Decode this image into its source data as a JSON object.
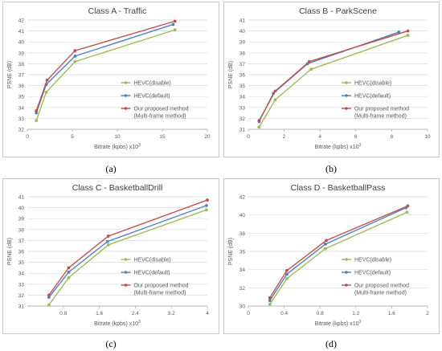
{
  "legend_labels": {
    "disable": "HEVC(disable)",
    "default": "HEVC(default)",
    "proposed_line1": "Our proposed method",
    "proposed_line2": "(Multi-frame method)"
  },
  "colors": {
    "disable": "#9bbb59",
    "default": "#4f81bd",
    "proposed": "#c0504d",
    "grid": "#d9d9d9",
    "axis": "#a6a6a6",
    "text": "#595959"
  },
  "chart_data": [
    {
      "type": "line",
      "sublabel": "(a)",
      "title": "Class A - Traffic",
      "xlabel": "Bitrate (kpbs) x10",
      "xlabel_sup": "3",
      "ylabel": "PSNE (dB)",
      "xlim": [
        0,
        20
      ],
      "ylim": [
        32,
        42
      ],
      "xticks": [
        0,
        5,
        10,
        15,
        20
      ],
      "xtick_labels": [
        "0",
        "5",
        "10",
        "15",
        "20"
      ],
      "yticks": [
        32,
        33,
        34,
        35,
        36,
        37,
        38,
        39,
        40,
        41,
        42
      ],
      "grid": "horizontal",
      "legend_position": "bottom-right",
      "series": [
        {
          "key": "disable",
          "name": "HEVC(disable)",
          "x": [
            1.0,
            2.1,
            5.3,
            16.4
          ],
          "y": [
            32.8,
            35.4,
            38.2,
            41.1
          ]
        },
        {
          "key": "default",
          "name": "HEVC(default)",
          "x": [
            1.0,
            2.1,
            5.3,
            16.2
          ],
          "y": [
            33.5,
            36.1,
            38.7,
            41.6
          ]
        },
        {
          "key": "proposed",
          "name": "Our proposed method (Multi-frame method)",
          "x": [
            1.0,
            2.2,
            5.3,
            16.4
          ],
          "y": [
            33.7,
            36.5,
            39.2,
            41.9
          ]
        }
      ]
    },
    {
      "type": "line",
      "sublabel": "(b)",
      "title": "Class B - ParkScene",
      "xlabel": "Bitrate (kpbs) x10",
      "xlabel_sup": "3",
      "ylabel": "PSNE (dB)",
      "xlim": [
        0,
        10
      ],
      "ylim": [
        31,
        41
      ],
      "xticks": [
        0,
        2,
        4,
        6,
        8,
        10
      ],
      "xtick_labels": [
        "0",
        "2",
        "4",
        "6",
        "8",
        "10"
      ],
      "yticks": [
        31,
        32,
        33,
        34,
        35,
        36,
        37,
        38,
        39,
        40,
        41
      ],
      "grid": "horizontal",
      "legend_position": "bottom-right",
      "series": [
        {
          "key": "disable",
          "name": "HEVC(disable)",
          "x": [
            0.6,
            1.5,
            3.5,
            8.9
          ],
          "y": [
            31.2,
            33.7,
            36.5,
            39.6
          ]
        },
        {
          "key": "default",
          "name": "HEVC(default)",
          "x": [
            0.6,
            1.4,
            3.3,
            8.4
          ],
          "y": [
            31.7,
            34.3,
            37.0,
            39.9
          ]
        },
        {
          "key": "proposed",
          "name": "Our proposed method (Multi-frame method)",
          "x": [
            0.6,
            1.5,
            3.4,
            8.9
          ],
          "y": [
            31.8,
            34.5,
            37.2,
            40.0
          ]
        }
      ]
    },
    {
      "type": "line",
      "sublabel": "(c)",
      "title": "Class C - BasketballDrill",
      "xlabel": "Bitrate (kpbs) x10",
      "xlabel_sup": "3",
      "ylabel": "PSNE (dB)",
      "xlim": [
        0,
        4
      ],
      "ylim": [
        31,
        41
      ],
      "xticks": [
        0.8,
        1.6,
        2.4,
        3.2,
        4
      ],
      "xtick_labels": [
        "0.8",
        "1.6",
        "2.4",
        "3.2",
        "4"
      ],
      "yticks": [
        31,
        32,
        33,
        34,
        35,
        36,
        37,
        38,
        39,
        40,
        41
      ],
      "grid": "horizontal",
      "legend_position": "bottom-right",
      "series": [
        {
          "key": "disable",
          "name": "HEVC(disable)",
          "x": [
            0.48,
            0.92,
            1.8,
            3.98
          ],
          "y": [
            31.1,
            33.6,
            36.6,
            39.8
          ]
        },
        {
          "key": "default",
          "name": "HEVC(default)",
          "x": [
            0.48,
            0.92,
            1.78,
            3.98
          ],
          "y": [
            31.8,
            34.1,
            36.9,
            40.2
          ]
        },
        {
          "key": "proposed",
          "name": "Our proposed method (Multi-frame method)",
          "x": [
            0.48,
            0.92,
            1.8,
            4.0
          ],
          "y": [
            32.0,
            34.5,
            37.4,
            40.7
          ]
        }
      ]
    },
    {
      "type": "line",
      "sublabel": "(d)",
      "title": "Class D - BasketballPass",
      "xlabel": "Bitrate (kpbs) x10",
      "xlabel_sup": "3",
      "ylabel": "PSNE (dB)",
      "xlim": [
        0,
        2
      ],
      "ylim": [
        30,
        42
      ],
      "xticks": [
        0,
        0.4,
        0.8,
        1.2,
        1.6,
        2
      ],
      "xtick_labels": [
        "0",
        "0.4",
        "0.8",
        "1.2",
        "1.6",
        "2"
      ],
      "yticks": [
        30,
        32,
        34,
        36,
        38,
        40,
        42
      ],
      "grid": "horizontal",
      "legend_position": "bottom-right",
      "series": [
        {
          "key": "disable",
          "name": "HEVC(disable)",
          "x": [
            0.24,
            0.43,
            0.86,
            1.77
          ],
          "y": [
            30.2,
            33.0,
            36.3,
            40.3
          ]
        },
        {
          "key": "default",
          "name": "HEVC(default)",
          "x": [
            0.24,
            0.43,
            0.86,
            1.76
          ],
          "y": [
            30.6,
            33.5,
            36.8,
            40.8
          ]
        },
        {
          "key": "proposed",
          "name": "Our proposed method (Multi-frame method)",
          "x": [
            0.24,
            0.43,
            0.87,
            1.78
          ],
          "y": [
            30.9,
            33.9,
            37.2,
            41.0
          ]
        }
      ]
    }
  ]
}
